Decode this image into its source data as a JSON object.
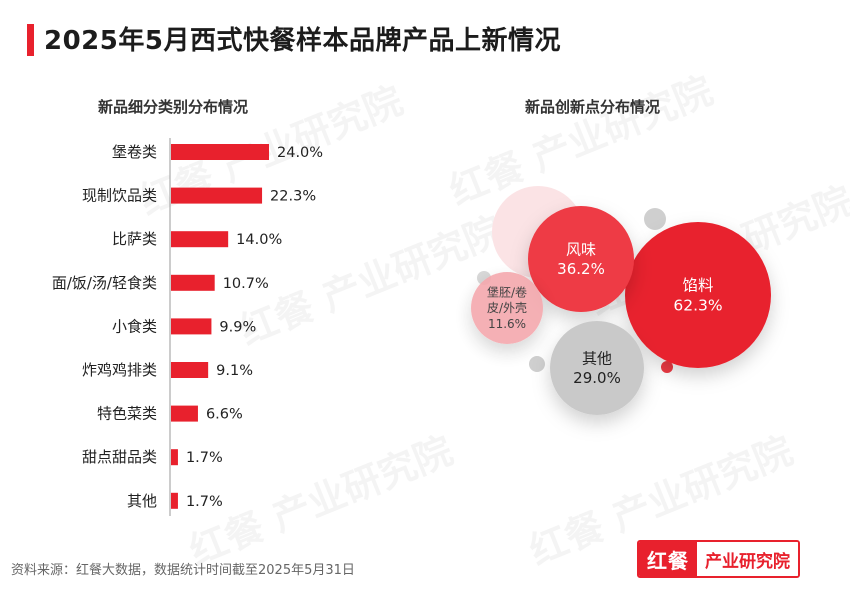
{
  "header": {
    "title": "2025年5月西式快餐样本品牌产品上新情况"
  },
  "chart_data": [
    {
      "type": "bar",
      "orientation": "horizontal",
      "title": "新品细分类别分布情况",
      "categories": [
        "堡卷类",
        "现制饮品类",
        "比萨类",
        "面/饭/汤/轻食类",
        "小食类",
        "炸鸡鸡排类",
        "特色菜类",
        "甜点甜品类",
        "其他"
      ],
      "values": [
        24.0,
        22.3,
        14.0,
        10.7,
        9.9,
        9.1,
        6.6,
        1.7,
        1.7
      ],
      "value_labels": [
        "24.0%",
        "22.3%",
        "14.0%",
        "10.7%",
        "9.9%",
        "9.1%",
        "6.6%",
        "1.7%",
        "1.7%"
      ],
      "unit": "%",
      "color": "#e8212d",
      "xlim": [
        0,
        24.0
      ],
      "grid": false,
      "legend": "none"
    },
    {
      "type": "bubble",
      "title": "新品创新点分布情况",
      "bubbles": [
        {
          "label": "馅料",
          "value": 62.3,
          "value_label": "62.3%",
          "color": "#e8212d",
          "text_color": "#ffffff"
        },
        {
          "label": "风味",
          "value": 36.2,
          "value_label": "36.2%",
          "color": "#ee3a44",
          "text_color": "#ffffff"
        },
        {
          "label": "其他",
          "value": 29.0,
          "value_label": "29.0%",
          "color": "#c9c9c9",
          "text_color": "#222222"
        },
        {
          "label_lines": [
            "堡胚/卷",
            "皮/外壳"
          ],
          "value": 11.6,
          "value_label": "11.6%",
          "color": "#f4a8ad",
          "text_color": "#444444"
        }
      ],
      "unit": "%",
      "legend": "none"
    }
  ],
  "footer": {
    "source": "资料来源：红餐大数据，数据统计时间截至2025年5月31日",
    "brand_red": "红餐",
    "brand_text": "产业研究院"
  },
  "watermark_text": "红餐 产业研究院",
  "colors": {
    "accent": "#e8212d",
    "grey": "#c9c9c9"
  }
}
